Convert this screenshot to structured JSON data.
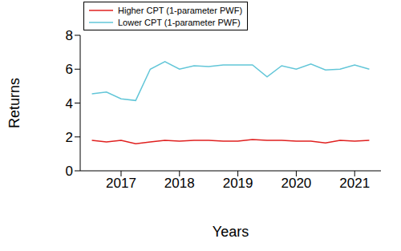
{
  "chart_data": {
    "type": "line",
    "x_label": "Years",
    "y_label": "Returns",
    "x": [
      2016.5,
      2016.75,
      2017,
      2017.25,
      2017.5,
      2017.75,
      2018,
      2018.25,
      2018.5,
      2018.75,
      2019,
      2019.25,
      2019.5,
      2019.75,
      2020,
      2020.25,
      2020.5,
      2020.75,
      2021,
      2021.25
    ],
    "series": [
      {
        "name": "Higher CPT (1-parameter PWF)",
        "color": "#e0201f",
        "values": [
          1.8,
          1.7,
          1.8,
          1.6,
          1.7,
          1.8,
          1.75,
          1.8,
          1.8,
          1.75,
          1.75,
          1.85,
          1.8,
          1.8,
          1.75,
          1.75,
          1.65,
          1.8,
          1.75,
          1.8
        ]
      },
      {
        "name": "Lower CPT (1-parameter PWF)",
        "color": "#62c6d8",
        "values": [
          4.55,
          4.65,
          4.25,
          4.15,
          6.0,
          6.45,
          6.0,
          6.2,
          6.15,
          6.25,
          6.25,
          6.25,
          5.55,
          6.2,
          6.0,
          6.3,
          5.95,
          6.0,
          6.25,
          6.0
        ]
      }
    ],
    "xlim": [
      2016.3,
      2021.45
    ],
    "xticks": [
      2017,
      2018,
      2019,
      2020,
      2021
    ],
    "ylim": [
      0,
      8
    ],
    "yticks": [
      0,
      2,
      4,
      6,
      8
    ],
    "legend": "top-left"
  }
}
